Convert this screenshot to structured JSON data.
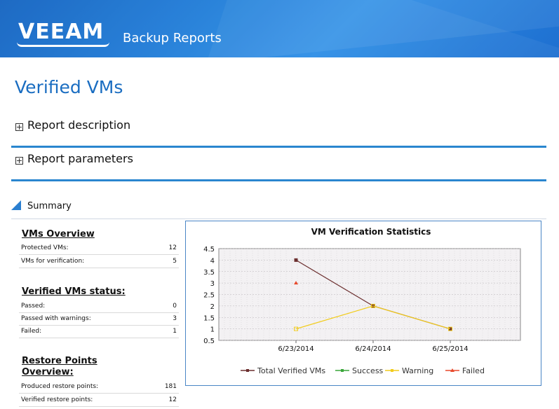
{
  "header": {
    "logo_text": "VEEAM",
    "app_title": "Backup Reports",
    "colors": {
      "header_start": "#0d5fbf",
      "header_end": "#2d8ee6"
    }
  },
  "page_title": "Verified VMs",
  "sections": [
    {
      "label": "Report description",
      "expanded": false
    },
    {
      "label": "Report parameters",
      "expanded": false
    }
  ],
  "summary": {
    "label": "Summary",
    "vms_overview": {
      "title": "VMs Overview",
      "rows": [
        {
          "label": "Protected VMs:",
          "value": "12"
        },
        {
          "label": "VMs for verification:",
          "value": "5"
        }
      ]
    },
    "verified_status": {
      "title": "Verified VMs status:",
      "rows": [
        {
          "label": "Passed:",
          "value": "0"
        },
        {
          "label": "Passed with warnings:",
          "value": "3"
        },
        {
          "label": "Failed:",
          "value": "1"
        }
      ]
    },
    "restore_points": {
      "title_line1": "Restore Points",
      "title_line2": "Overview:",
      "rows": [
        {
          "label": "Produced restore points:",
          "value": "181"
        },
        {
          "label": "Verified restore points:",
          "value": "12"
        }
      ]
    }
  },
  "chart_data": {
    "type": "line",
    "title": "VM Verification Statistics",
    "categories": [
      "6/23/2014",
      "6/24/2014",
      "6/25/2014"
    ],
    "ylim": [
      0.5,
      4.5
    ],
    "yticks": [
      "0.5",
      "1",
      "1.5",
      "2",
      "2.5",
      "3",
      "3.5",
      "4",
      "4.5"
    ],
    "grid": true,
    "legend_position": "bottom",
    "series": [
      {
        "name": "Total Verified VMs",
        "color": "#6b2e2e",
        "values": [
          4,
          2,
          1
        ]
      },
      {
        "name": "Success",
        "color": "#3aa63a",
        "values": [
          null,
          null,
          null
        ]
      },
      {
        "name": "Warning",
        "color": "#f2cc1c",
        "values": [
          1,
          2,
          1
        ]
      },
      {
        "name": "Failed",
        "color": "#e8492b",
        "values": [
          3,
          null,
          null
        ]
      }
    ]
  }
}
